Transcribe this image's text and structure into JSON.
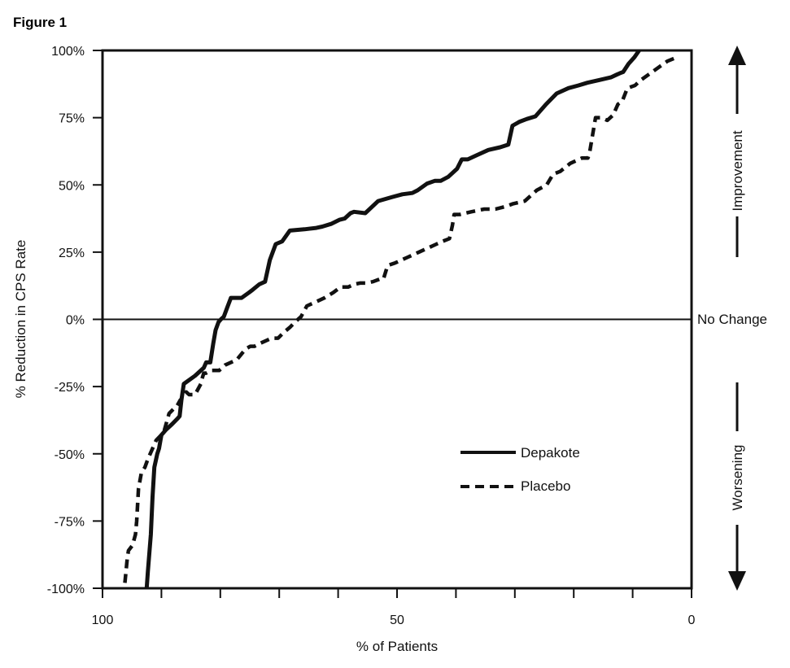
{
  "figure_label": "Figure 1",
  "chart_data": {
    "type": "line",
    "title": "",
    "xlabel": "% of Patients",
    "ylabel": "% Reduction in CPS Rate",
    "x_reversed": true,
    "xlim": [
      100,
      0
    ],
    "ylim": [
      -100,
      100
    ],
    "x_ticks": [
      100,
      90,
      80,
      70,
      60,
      50,
      40,
      30,
      20,
      10,
      0
    ],
    "x_tick_labels": [
      {
        "value": 100,
        "label": "100"
      },
      {
        "value": 50,
        "label": "50"
      },
      {
        "value": 0,
        "label": "0"
      }
    ],
    "y_ticks": [
      {
        "value": 100,
        "label": "100%"
      },
      {
        "value": 75,
        "label": "75%"
      },
      {
        "value": 50,
        "label": "50%"
      },
      {
        "value": 25,
        "label": "25%"
      },
      {
        "value": 0,
        "label": "0%"
      },
      {
        "value": -25,
        "label": "-25%"
      },
      {
        "value": -50,
        "label": "-50%"
      },
      {
        "value": -75,
        "label": "-75%"
      },
      {
        "value": -100,
        "label": "-100%"
      }
    ],
    "reference_line": {
      "y": 0,
      "label": "No Change"
    },
    "side_annotations": {
      "top": "Improvement",
      "bottom": "Worsening"
    },
    "legend_placement": "lower-right inside plot",
    "series": [
      {
        "name": "Depakote",
        "style": "solid",
        "x": [
          92.5,
          92.3,
          91.8,
          91.5,
          91.2,
          90.7,
          90.4,
          90.0,
          89.2,
          88.2,
          87.3,
          86.9,
          86.6,
          86.2,
          84.3,
          82.8,
          82.4,
          81.7,
          81.2,
          80.8,
          80.3,
          79.9,
          79.4,
          78.9,
          78.2,
          77.2,
          76.4,
          75.1,
          74.5,
          73.4,
          72.4,
          71.6,
          70.6,
          69.5,
          68.2,
          65.7,
          63.7,
          62.7,
          61.2,
          59.8,
          58.9,
          57.9,
          57.3,
          55.4,
          53.2,
          50.8,
          49.1,
          47.4,
          46.5,
          44.9,
          43.6,
          42.6,
          41.3,
          39.8,
          39.0,
          38.0,
          36.5,
          34.5,
          32.5,
          31.1,
          30.4,
          29.2,
          28.0,
          26.5,
          24.7,
          22.9,
          20.9,
          19.2,
          17.7,
          15.7,
          13.7,
          12.7,
          12.2,
          11.6,
          10.7,
          9.7,
          8.9
        ],
        "y": [
          -100,
          -94,
          -80,
          -66,
          -55,
          -50,
          -48,
          -43,
          -41,
          -39,
          -37,
          -36,
          -30,
          -24,
          -21,
          -18,
          -16,
          -16,
          -9,
          -4,
          -1,
          0,
          1,
          4,
          8,
          8,
          8,
          10,
          11,
          13,
          14,
          22,
          28,
          29,
          33,
          33.5,
          34,
          34.5,
          35.5,
          37,
          37.5,
          39.5,
          40,
          39.5,
          44,
          45.5,
          46.5,
          47,
          48,
          50.5,
          51.5,
          51.5,
          53,
          56,
          59.5,
          59.5,
          61,
          63,
          64,
          65,
          72,
          73.5,
          74.5,
          75.5,
          80,
          84,
          86,
          87,
          88,
          89,
          90,
          91,
          91.5,
          92,
          95,
          97.5,
          100
        ]
      },
      {
        "name": "Placebo",
        "style": "dashed",
        "x": [
          96.2,
          95.8,
          95.6,
          94.9,
          94.4,
          94.2,
          93.9,
          93.4,
          92.8,
          92.3,
          90.9,
          89.6,
          88.7,
          87.8,
          87.3,
          86.8,
          86.3,
          85.8,
          85.3,
          84.3,
          83.3,
          83.1,
          82.8,
          82.4,
          81.6,
          80.2,
          79.2,
          78.2,
          77.2,
          75.7,
          74.9,
          74.2,
          73.3,
          72.3,
          71.3,
          70.2,
          69.3,
          68.2,
          67.3,
          66.3,
          65.3,
          64.3,
          63.3,
          62.3,
          60.8,
          59.6,
          58.3,
          57.3,
          56.3,
          55.3,
          54.1,
          52.9,
          52.3,
          51.6,
          50.3,
          48.3,
          46.3,
          44.3,
          43.3,
          42.3,
          41.1,
          40.9,
          40.6,
          40.3,
          39.3,
          37.4,
          35.2,
          33.3,
          31.5,
          30.3,
          28.3,
          26.3,
          24.6,
          23.5,
          22.3,
          20.6,
          18.6,
          17.6,
          17.3,
          17.0,
          16.3,
          15.3,
          14.3,
          13.3,
          12.5,
          11.8,
          10.9,
          9.6,
          8.6,
          7.3,
          5.4,
          4.1,
          3.0
        ],
        "y": [
          -98,
          -89,
          -86,
          -84,
          -80,
          -75,
          -63,
          -57,
          -55,
          -52,
          -45,
          -42,
          -35,
          -33,
          -32,
          -30,
          -29,
          -27,
          -28,
          -28,
          -24,
          -22,
          -20,
          -20,
          -19,
          -19,
          -17,
          -16,
          -15,
          -11,
          -10,
          -10,
          -9,
          -8,
          -7,
          -7,
          -5,
          -3,
          -1,
          1,
          5,
          6,
          7,
          8,
          10,
          12,
          12,
          13,
          13.5,
          13.5,
          14,
          15,
          15,
          20,
          21,
          23,
          25,
          27,
          28,
          29,
          30,
          32,
          35,
          39,
          39,
          40,
          41,
          41,
          42,
          43,
          44,
          48,
          50,
          54,
          55,
          58,
          60,
          60,
          62,
          66,
          75,
          75,
          74,
          76,
          80,
          81,
          86,
          87,
          89,
          91,
          94,
          96,
          97
        ]
      }
    ]
  }
}
